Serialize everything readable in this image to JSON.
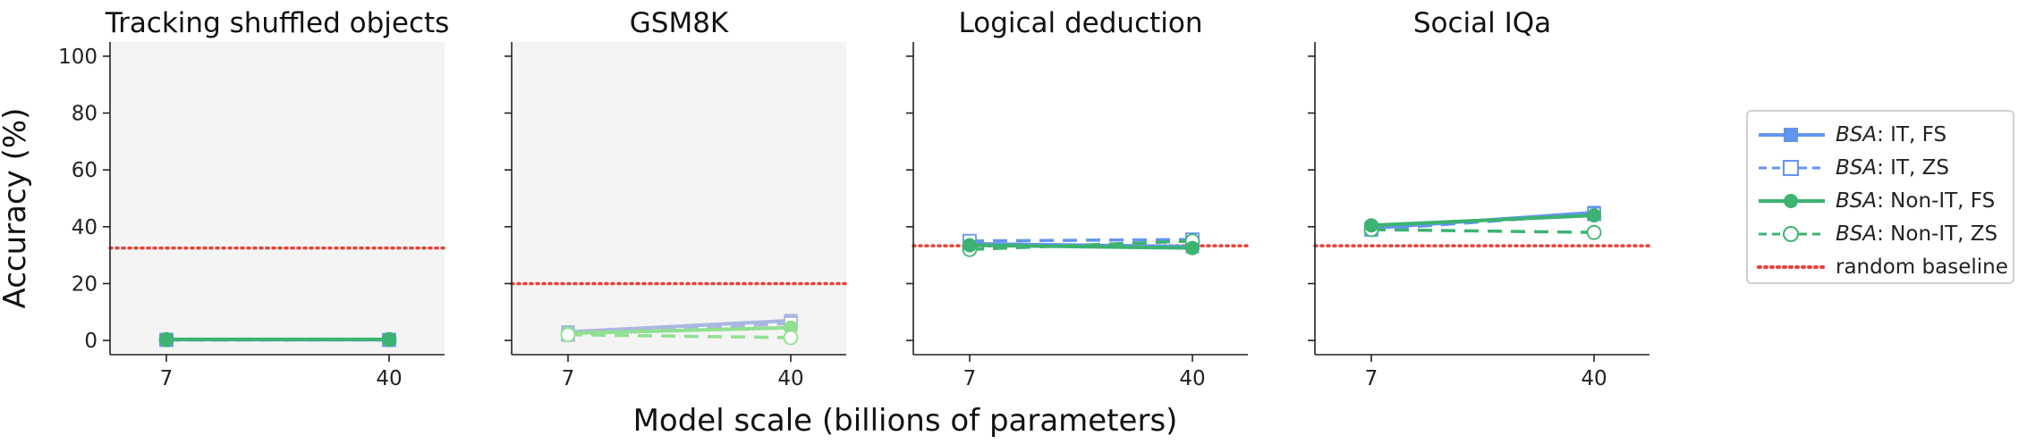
{
  "figure": {
    "ylabel": "Accuracy (%)",
    "xlabel": "Model scale (billions of parameters)"
  },
  "legend": {
    "items": [
      {
        "prefix": "BSA",
        "suffix": ": IT, FS",
        "color": "#6495ED",
        "style": "solid",
        "marker": "square-filled"
      },
      {
        "prefix": "BSA",
        "suffix": ": IT, ZS",
        "color": "#6495ED",
        "style": "dashed",
        "marker": "square-open"
      },
      {
        "prefix": "BSA",
        "suffix": ": Non-IT, FS",
        "color": "#3CB371",
        "style": "solid",
        "marker": "circle-filled"
      },
      {
        "prefix": "BSA",
        "suffix": ": Non-IT, ZS",
        "color": "#3CB371",
        "style": "dashed",
        "marker": "circle-open"
      },
      {
        "prefix": "",
        "suffix": "random baseline",
        "color": "#E8413A",
        "style": "dotted",
        "marker": "none"
      }
    ]
  },
  "chart_data": [
    {
      "type": "line",
      "title": "Tracking shuffled objects",
      "x": [
        7,
        40
      ],
      "xticks": [
        "7",
        "40"
      ],
      "ylim": [
        -5,
        105
      ],
      "yticks": [
        0,
        20,
        40,
        60,
        80,
        100
      ],
      "show_yticklabels": true,
      "background": "#f4f4f4",
      "baseline": 32.5,
      "series": [
        {
          "key": "it_fs",
          "values": [
            0.3,
            0.3
          ],
          "color": "#6495ED",
          "style": "solid",
          "marker": "square-filled"
        },
        {
          "key": "it_zs",
          "values": [
            0.2,
            0.2
          ],
          "color": "#6495ED",
          "style": "dashed",
          "marker": "square-open"
        },
        {
          "key": "nonit_zs",
          "values": [
            0.3,
            0.3
          ],
          "color": "#3CB371",
          "style": "dashed",
          "marker": "circle-open"
        },
        {
          "key": "nonit_fs",
          "values": [
            0.4,
            0.4
          ],
          "color": "#3CB371",
          "style": "solid",
          "marker": "circle-filled"
        }
      ]
    },
    {
      "type": "line",
      "title": "GSM8K",
      "x": [
        7,
        40
      ],
      "xticks": [
        "7",
        "40"
      ],
      "ylim": [
        -5,
        105
      ],
      "yticks": [
        0,
        20,
        40,
        60,
        80,
        100
      ],
      "show_yticklabels": false,
      "background": "#f4f4f4",
      "baseline": 20,
      "series": [
        {
          "key": "it_fs",
          "values": [
            3,
            7
          ],
          "color": "#A9B8E0",
          "style": "solid",
          "marker": "square-filled"
        },
        {
          "key": "it_zs",
          "values": [
            2,
            6
          ],
          "color": "#A9B8E0",
          "style": "dashed",
          "marker": "square-open"
        },
        {
          "key": "nonit_fs",
          "values": [
            2.5,
            4.5
          ],
          "color": "#90E090",
          "style": "solid",
          "marker": "circle-filled"
        },
        {
          "key": "nonit_zs",
          "values": [
            2,
            1
          ],
          "color": "#90E090",
          "style": "dashed",
          "marker": "circle-open"
        }
      ]
    },
    {
      "type": "line",
      "title": "Logical deduction",
      "x": [
        7,
        40
      ],
      "xticks": [
        "7",
        "40"
      ],
      "ylim": [
        -5,
        105
      ],
      "yticks": [
        0,
        20,
        40,
        60,
        80,
        100
      ],
      "show_yticklabels": false,
      "background": "#ffffff",
      "baseline": 33.3,
      "series": [
        {
          "key": "it_fs",
          "values": [
            34,
            33
          ],
          "color": "#6495ED",
          "style": "solid",
          "marker": "square-filled"
        },
        {
          "key": "it_zs",
          "values": [
            35,
            35.5
          ],
          "color": "#6495ED",
          "style": "dashed",
          "marker": "square-open"
        },
        {
          "key": "nonit_zs",
          "values": [
            32,
            35
          ],
          "color": "#3CB371",
          "style": "dashed",
          "marker": "circle-open"
        },
        {
          "key": "nonit_fs",
          "values": [
            33.5,
            32.5
          ],
          "color": "#3CB371",
          "style": "solid",
          "marker": "circle-filled"
        }
      ]
    },
    {
      "type": "line",
      "title": "Social IQa",
      "x": [
        7,
        40
      ],
      "xticks": [
        "7",
        "40"
      ],
      "ylim": [
        -5,
        105
      ],
      "yticks": [
        0,
        20,
        40,
        60,
        80,
        100
      ],
      "show_yticklabels": false,
      "background": "#ffffff",
      "baseline": 33.3,
      "series": [
        {
          "key": "it_fs",
          "values": [
            39.5,
            45
          ],
          "color": "#6495ED",
          "style": "solid",
          "marker": "square-filled"
        },
        {
          "key": "it_zs",
          "values": [
            39,
            44.5
          ],
          "color": "#6495ED",
          "style": "dashed",
          "marker": "square-open"
        },
        {
          "key": "nonit_zs",
          "values": [
            39,
            38
          ],
          "color": "#3CB371",
          "style": "dashed",
          "marker": "circle-open"
        },
        {
          "key": "nonit_fs",
          "values": [
            40.5,
            44
          ],
          "color": "#3CB371",
          "style": "solid",
          "marker": "circle-filled"
        }
      ]
    }
  ]
}
